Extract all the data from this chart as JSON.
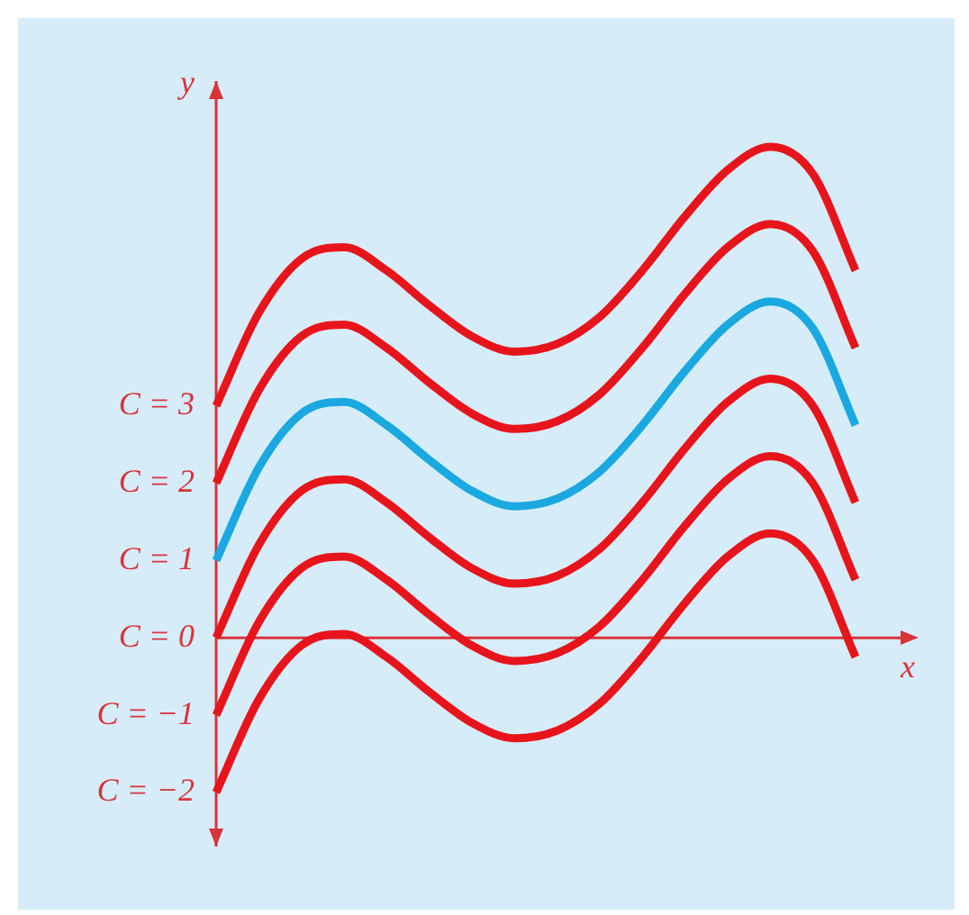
{
  "chart_data": {
    "type": "line",
    "xlabel": "x",
    "ylabel": "y",
    "categories": [
      null,
      null,
      null,
      null,
      null,
      null,
      null,
      null,
      null,
      null,
      null,
      null,
      null,
      null,
      null,
      null
    ],
    "series": [
      {
        "color": "#e8141c",
        "values": [
          3,
          4.2,
          4.9,
          5.05,
          4.75,
          4.3,
          3.9,
          3.7,
          3.8,
          4.15,
          4.75,
          5.45,
          6.05,
          6.35,
          6.0,
          4.75
        ]
      },
      {
        "color": "#e8141c",
        "values": [
          2,
          3.2,
          3.9,
          4.05,
          3.75,
          3.3,
          2.9,
          2.7,
          2.8,
          3.15,
          3.75,
          4.45,
          5.05,
          5.35,
          5.0,
          3.75
        ]
      },
      {
        "color": "#1aa8e0",
        "values": [
          1,
          2.2,
          2.9,
          3.05,
          2.75,
          2.3,
          1.9,
          1.7,
          1.8,
          2.15,
          2.75,
          3.45,
          4.05,
          4.35,
          4.0,
          2.75
        ]
      },
      {
        "color": "#e8141c",
        "values": [
          0,
          1.2,
          1.9,
          2.05,
          1.75,
          1.3,
          0.9,
          0.7,
          0.8,
          1.15,
          1.75,
          2.45,
          3.05,
          3.35,
          3.0,
          1.75
        ]
      },
      {
        "color": "#e8141c",
        "values": [
          -1,
          0.2,
          0.9,
          1.05,
          0.75,
          0.3,
          -0.1,
          -0.3,
          -0.2,
          0.15,
          0.75,
          1.45,
          2.05,
          2.35,
          2.0,
          0.75
        ]
      },
      {
        "color": "#e8141c",
        "values": [
          -2,
          -0.8,
          -0.1,
          0.05,
          -0.25,
          -0.7,
          -1.1,
          -1.3,
          -1.2,
          -0.85,
          -0.25,
          0.45,
          1.05,
          1.35,
          1.0,
          -0.25
        ]
      }
    ],
    "ylim": [
      -2.7,
      7.2
    ],
    "yticks": [
      {
        "value": 3,
        "label": "C = 3"
      },
      {
        "value": 2,
        "label": "C = 2"
      },
      {
        "value": 1,
        "label": "C = 1"
      },
      {
        "value": 0,
        "label": "C = 0"
      },
      {
        "value": -1,
        "label": "C = −1"
      },
      {
        "value": -2,
        "label": "C = −2"
      }
    ],
    "ref_lines": [
      {
        "axis": "y",
        "value": 0,
        "color": "#d9333a"
      }
    ],
    "tick_labels": "y",
    "grid": false,
    "legend": false
  }
}
